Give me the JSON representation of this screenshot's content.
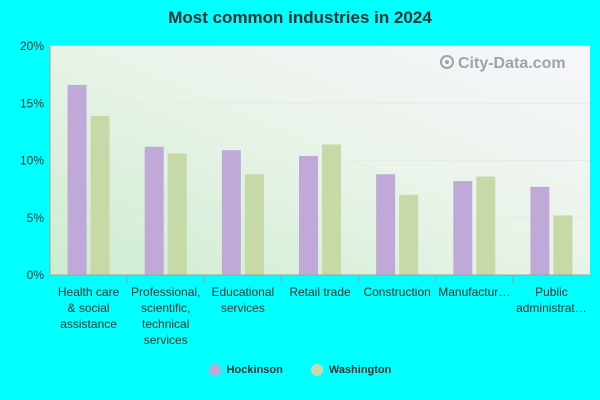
{
  "chart_data": {
    "type": "bar",
    "title": "Most common industries in 2024",
    "categories": [
      [
        "Health care",
        "& social",
        "assistance"
      ],
      [
        "Professional,",
        "scientific,",
        "technical",
        "services"
      ],
      [
        "Educational",
        "services"
      ],
      [
        "Retail trade"
      ],
      [
        "Construction"
      ],
      [
        "Manufactur…"
      ],
      [
        "Public",
        "administrat…"
      ]
    ],
    "series": [
      {
        "name": "Hockinson",
        "color": "#c0a8d8",
        "values": [
          16.6,
          11.2,
          10.9,
          10.4,
          8.8,
          8.2,
          7.7
        ]
      },
      {
        "name": "Washington",
        "color": "#c6d9a6",
        "values": [
          13.9,
          10.6,
          8.8,
          11.4,
          7.0,
          8.6,
          5.2
        ]
      }
    ],
    "y_ticks": [
      "0%",
      "5%",
      "10%",
      "15%",
      "20%"
    ],
    "ylim": [
      0,
      20
    ],
    "legend_position": "bottom",
    "grid": true
  },
  "watermark": "City-Data.com"
}
